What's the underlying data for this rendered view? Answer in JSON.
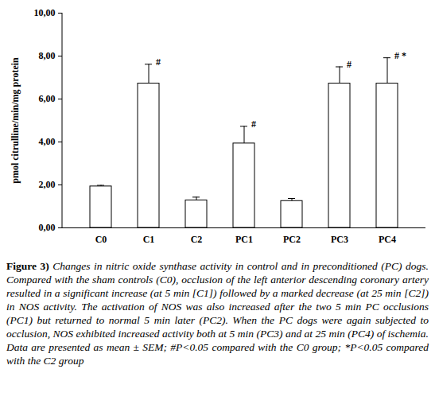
{
  "chart_data": {
    "type": "bar",
    "categories": [
      "C0",
      "C1",
      "C2",
      "PC1",
      "PC2",
      "PC3",
      "PC4"
    ],
    "values": [
      1.93,
      6.72,
      1.28,
      3.93,
      1.25,
      6.72,
      6.72
    ],
    "errors": [
      0.05,
      0.9,
      0.15,
      0.8,
      0.12,
      0.78,
      1.2
    ],
    "significance": [
      null,
      "#",
      null,
      "#",
      null,
      "#",
      "# *"
    ],
    "color": "#ffffff",
    "y_label": "pmol citrulline/min/mg protein",
    "ylim": [
      0,
      10
    ],
    "yticks": [
      {
        "value": 0,
        "label": "0,00"
      },
      {
        "value": 2,
        "label": "2,00"
      },
      {
        "value": 4,
        "label": "4,00"
      },
      {
        "value": 6,
        "label": "6,00"
      },
      {
        "value": 8,
        "label": "8,00"
      },
      {
        "value": 10,
        "label": "10,00"
      }
    ],
    "grid": false,
    "caption": {
      "label": "Figure 3)",
      "text": "Changes in nitric oxide synthase activity in control and in preconditioned (PC) dogs. Compared with the sham controls (C0), occlusion of the left anterior descending coronary artery resulted in a significant increase (at 5 min [C1]) followed by a marked decrease (at 25 min [C2]) in NOS activity. The activation of NOS was also increased after the two 5 min PC occlusions (PC1) but returned to normal 5 min later (PC2). When the PC dogs were again subjected to occlusion, NOS exhibited increased activity both at 5 min (PC3) and at 25 min (PC4) of ischemia. Data are presented as mean ± SEM; #P<0.05 compared with the C0 group; *P<0.05 compared with the C2 group"
    }
  }
}
